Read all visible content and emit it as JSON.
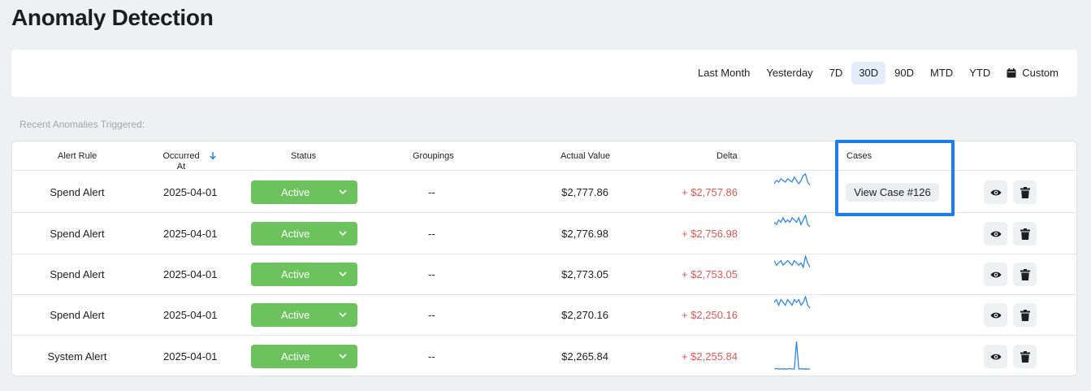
{
  "page": {
    "title": "Anomaly Detection"
  },
  "date_range": {
    "options": [
      "Last Month",
      "Yesterday",
      "7D",
      "30D",
      "90D",
      "MTD",
      "YTD"
    ],
    "selected": "30D",
    "custom_label": "Custom",
    "custom_icon": "calendar-icon"
  },
  "section_label": "Recent Anomalies Triggered:",
  "table": {
    "headers": {
      "alert_rule": "Alert Rule",
      "occurred_at": "Occurred\nAt",
      "status": "Status",
      "groupings": "Groupings",
      "actual_value": "Actual Value",
      "delta": "Delta",
      "cases": "Cases"
    },
    "sort_icon": "arrow-down-icon",
    "rows": [
      {
        "alert_rule": "Spend Alert",
        "occurred_at": "2025-04-01",
        "status": "Active",
        "groupings": "--",
        "actual_value": "$2,777.86",
        "delta": "+ $2,757.86",
        "case": "View Case #126",
        "sparkline": [
          3,
          5,
          4,
          6,
          5,
          4,
          6,
          5,
          4,
          7,
          5,
          3,
          5,
          8,
          9,
          4,
          2
        ]
      },
      {
        "alert_rule": "Spend Alert",
        "occurred_at": "2025-04-01",
        "status": "Active",
        "groupings": "--",
        "actual_value": "$2,776.98",
        "delta": "+ $2,756.98",
        "case": "",
        "sparkline": [
          4,
          3,
          5,
          4,
          6,
          4,
          5,
          4,
          6,
          5,
          4,
          6,
          3,
          5,
          7,
          3,
          2
        ]
      },
      {
        "alert_rule": "Spend Alert",
        "occurred_at": "2025-04-01",
        "status": "Active",
        "groupings": "--",
        "actual_value": "$2,773.05",
        "delta": "+ $2,753.05",
        "case": "",
        "sparkline": [
          5,
          3,
          4,
          5,
          3,
          4,
          5,
          4,
          3,
          5,
          4,
          3,
          4,
          2,
          7,
          4,
          2
        ]
      },
      {
        "alert_rule": "Spend Alert",
        "occurred_at": "2025-04-01",
        "status": "Active",
        "groupings": "--",
        "actual_value": "$2,270.16",
        "delta": "+ $2,250.16",
        "case": "",
        "sparkline": [
          4,
          5,
          3,
          5,
          4,
          3,
          5,
          4,
          3,
          5,
          4,
          5,
          3,
          4,
          6,
          3,
          2
        ]
      },
      {
        "alert_rule": "System Alert",
        "occurred_at": "2025-04-01",
        "status": "Active",
        "groupings": "--",
        "actual_value": "$2,265.84",
        "delta": "+ $2,255.84",
        "case": "",
        "sparkline": [
          1,
          1.5,
          1,
          1.3,
          1,
          1.2,
          1,
          1.4,
          1,
          1.1,
          30,
          1,
          1.3,
          1,
          1.2,
          1,
          1
        ]
      }
    ],
    "row_actions": {
      "view_icon": "eye-icon",
      "delete_icon": "trash-icon"
    }
  },
  "colors": {
    "status_active": "#6cc25c",
    "delta": "#e25757",
    "spark": "#2f86e8",
    "highlight": "#1c7cf0",
    "selected_range_bg": "#e3eefa"
  }
}
